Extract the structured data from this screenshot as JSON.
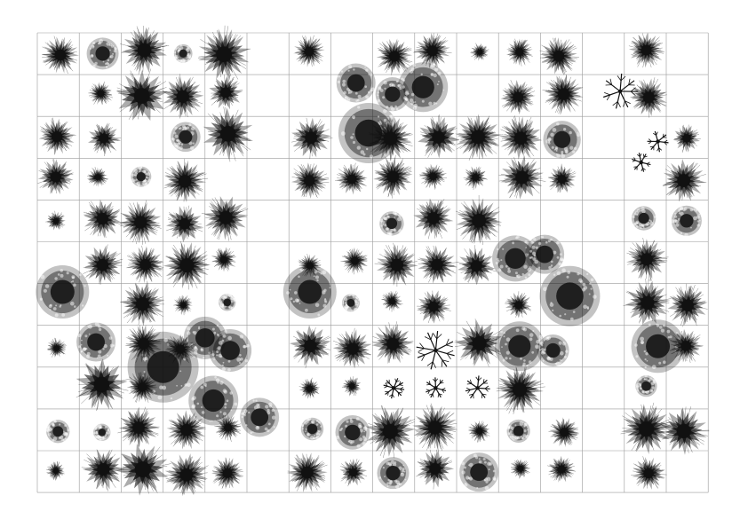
{
  "sheet": {
    "background": "#ffffff",
    "grid_color": "#9a9a9a",
    "ink": "#111111",
    "columns": 16,
    "rows": 11,
    "empty_columns": [
      5,
      13
    ],
    "symbol_kinds": [
      "spiky-canopy",
      "round-canopy",
      "branching-shrub"
    ]
  }
}
